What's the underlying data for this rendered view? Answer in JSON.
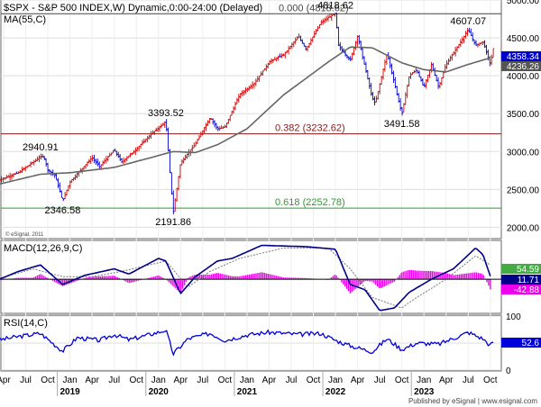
{
  "header": {
    "title": "$SPX - S&P 500 INDEX,W) Dynamic,0:00-24:00 (Delayed)",
    "ma_label": "MA(55,C)",
    "watermark": "© eSignal, 2011",
    "footer": "Published by eSignal | www.esignal.com"
  },
  "colors": {
    "up": "#cc0000",
    "down": "#0000cc",
    "ma": "#666666",
    "fib_red": "#8b1a1a",
    "fib_green": "#2e9b2e",
    "macd_line": "#00008b",
    "macd_signal": "#555555",
    "macd_hist": "#ee00ee",
    "rsi": "#0000dd",
    "last_price_bg": "#0000cc"
  },
  "chart_data": [
    {
      "type": "line",
      "name": "price",
      "ylim": [
        1850,
        5000
      ],
      "y_ticks": [
        2000,
        2500,
        3000,
        3500,
        4000,
        4500,
        5000
      ],
      "y_tick_labels": [
        "2000.00",
        "2500.00",
        "3000.00",
        "3500.00",
        "4000.00",
        "4500.00",
        "5000.00"
      ],
      "x_months": [
        "Apr",
        "Jul",
        "Oct",
        "Jan",
        "Apr",
        "Jul",
        "Oct",
        "Jan",
        "Apr",
        "Jul",
        "Oct",
        "Jan",
        "Apr",
        "Jul",
        "Oct",
        "Jan",
        "Apr",
        "Jul",
        "Oct",
        "Jan",
        "Apr",
        "Jul",
        "Oct"
      ],
      "x_years": [
        "2019",
        "2020",
        "2021",
        "2022",
        "2023"
      ],
      "x_start": "2018-04",
      "x_end": "2023-11",
      "key_points": [
        [
          "2018-03",
          2610
        ],
        [
          "2018-06",
          2720
        ],
        [
          "2018-09",
          2930
        ],
        [
          "2018-09",
          2940.91
        ],
        [
          "2018-10",
          2760
        ],
        [
          "2018-11",
          2680
        ],
        [
          "2018-12",
          2346.58
        ],
        [
          "2019-01",
          2600
        ],
        [
          "2019-04",
          2920
        ],
        [
          "2019-05",
          2800
        ],
        [
          "2019-07",
          3020
        ],
        [
          "2019-08",
          2860
        ],
        [
          "2019-10",
          3030
        ],
        [
          "2019-12",
          3230
        ],
        [
          "2020-02",
          3393.52
        ],
        [
          "2020-03",
          2191.86
        ],
        [
          "2020-04",
          2850
        ],
        [
          "2020-06",
          3100
        ],
        [
          "2020-08",
          3450
        ],
        [
          "2020-09",
          3300
        ],
        [
          "2020-10",
          3320
        ],
        [
          "2020-12",
          3750
        ],
        [
          "2021-02",
          3900
        ],
        [
          "2021-04",
          4180
        ],
        [
          "2021-06",
          4280
        ],
        [
          "2021-08",
          4520
        ],
        [
          "2021-09",
          4350
        ],
        [
          "2021-11",
          4700
        ],
        [
          "2021-12",
          4766
        ],
        [
          "2022-01",
          4818.62
        ],
        [
          "2022-01",
          4400
        ],
        [
          "2022-03",
          4200
        ],
        [
          "2022-04",
          4530
        ],
        [
          "2022-06",
          3700
        ],
        [
          "2022-06",
          3636
        ],
        [
          "2022-08",
          4300
        ],
        [
          "2022-10",
          3491.58
        ],
        [
          "2022-11",
          4000
        ],
        [
          "2022-12",
          4080
        ],
        [
          "2023-01",
          3840
        ],
        [
          "2023-02",
          4150
        ],
        [
          "2023-03",
          3850
        ],
        [
          "2023-04",
          4150
        ],
        [
          "2023-06",
          4450
        ],
        [
          "2023-07",
          4607.07
        ],
        [
          "2023-08",
          4400
        ],
        [
          "2023-09",
          4450
        ],
        [
          "2023-10",
          4150
        ],
        [
          "2023-10",
          4358.34
        ]
      ],
      "ma_points": [
        [
          "2018-03",
          2560
        ],
        [
          "2018-09",
          2700
        ],
        [
          "2019-01",
          2720
        ],
        [
          "2019-07",
          2790
        ],
        [
          "2019-12",
          2920
        ],
        [
          "2020-03",
          3000
        ],
        [
          "2020-06",
          2985
        ],
        [
          "2020-09",
          3090
        ],
        [
          "2021-01",
          3300
        ],
        [
          "2021-06",
          3750
        ],
        [
          "2021-12",
          4180
        ],
        [
          "2022-03",
          4380
        ],
        [
          "2022-06",
          4370
        ],
        [
          "2022-10",
          4170
        ],
        [
          "2023-01",
          4080
        ],
        [
          "2023-04",
          4050
        ],
        [
          "2023-07",
          4150
        ],
        [
          "2023-10",
          4236.26
        ]
      ],
      "annotations": [
        {
          "label": "2940.91",
          "date": "2018-09",
          "value": 2940.91,
          "anchor": "above"
        },
        {
          "label": "2346.58",
          "date": "2018-12",
          "value": 2346.58,
          "anchor": "below"
        },
        {
          "label": "3393.52",
          "date": "2020-02",
          "value": 3393.52,
          "anchor": "above"
        },
        {
          "label": "2191.86",
          "date": "2020-03",
          "value": 2191.86,
          "anchor": "below"
        },
        {
          "label": "4818.62",
          "date": "2022-01",
          "value": 4818.62,
          "anchor": "above"
        },
        {
          "label": "3491.58",
          "date": "2022-10",
          "value": 3491.58,
          "anchor": "below"
        },
        {
          "label": "4607.07",
          "date": "2023-07",
          "value": 4607.07,
          "anchor": "above"
        }
      ],
      "fib_levels": [
        {
          "label": "0.000 (4818.62)",
          "value": 4818.62,
          "color": "#444444"
        },
        {
          "label": "0.382 (3232.62)",
          "value": 3232.62,
          "color": "#8b1a1a"
        },
        {
          "label": "0.618 (2252.78)",
          "value": 2252.78,
          "color": "#2e9b2e"
        }
      ],
      "last_price": {
        "value": 4358.34,
        "label": "4358.34"
      },
      "last_ma": {
        "value": 4236.26,
        "label": "4236.26"
      }
    },
    {
      "type": "line",
      "name": "macd",
      "title": "MACD(12,26,9,C)",
      "ylim": [
        -70,
        80
      ],
      "zero_line": true,
      "macd_points": [
        [
          "2018-03",
          -5
        ],
        [
          "2018-06",
          30
        ],
        [
          "2018-09",
          55
        ],
        [
          "2018-12",
          -20
        ],
        [
          "2019-03",
          15
        ],
        [
          "2019-07",
          40
        ],
        [
          "2019-09",
          20
        ],
        [
          "2020-01",
          80
        ],
        [
          "2020-02",
          70
        ],
        [
          "2020-04",
          -55
        ],
        [
          "2020-06",
          10
        ],
        [
          "2020-09",
          70
        ],
        [
          "2020-11",
          80
        ],
        [
          "2021-03",
          130
        ],
        [
          "2021-09",
          125
        ],
        [
          "2022-01",
          115
        ],
        [
          "2022-03",
          -20
        ],
        [
          "2022-05",
          -40
        ],
        [
          "2022-07",
          -120
        ],
        [
          "2022-09",
          -110
        ],
        [
          "2022-11",
          -50
        ],
        [
          "2023-02",
          0
        ],
        [
          "2023-05",
          40
        ],
        [
          "2023-08",
          120
        ],
        [
          "2023-09",
          95
        ],
        [
          "2023-10",
          11.71
        ]
      ],
      "signal_points": [
        [
          "2018-03",
          0
        ],
        [
          "2018-08",
          40
        ],
        [
          "2018-12",
          10
        ],
        [
          "2019-04",
          10
        ],
        [
          "2019-08",
          30
        ],
        [
          "2020-02",
          70
        ],
        [
          "2020-05",
          -30
        ],
        [
          "2020-08",
          30
        ],
        [
          "2020-12",
          80
        ],
        [
          "2021-06",
          120
        ],
        [
          "2021-12",
          120
        ],
        [
          "2022-03",
          40
        ],
        [
          "2022-06",
          -70
        ],
        [
          "2022-10",
          -110
        ],
        [
          "2022-12",
          -70
        ],
        [
          "2023-04",
          0
        ],
        [
          "2023-08",
          90
        ],
        [
          "2023-10",
          54.59
        ]
      ],
      "labels": {
        "signal": "54.59",
        "macd": "11.71",
        "histogram": "-42.88"
      }
    },
    {
      "type": "line",
      "name": "rsi",
      "title": "RSI(14,C)",
      "ylim": [
        0,
        100
      ],
      "y_ticks": [
        0,
        50,
        100
      ],
      "y_tick_labels": [
        "0",
        "50",
        "100"
      ],
      "last_value": "52.6",
      "points": [
        [
          "2018-03",
          55
        ],
        [
          "2018-06",
          62
        ],
        [
          "2018-09",
          68
        ],
        [
          "2018-12",
          35
        ],
        [
          "2019-02",
          60
        ],
        [
          "2019-05",
          55
        ],
        [
          "2019-07",
          66
        ],
        [
          "2019-09",
          56
        ],
        [
          "2020-01",
          70
        ],
        [
          "2020-02",
          74
        ],
        [
          "2020-03",
          30
        ],
        [
          "2020-05",
          58
        ],
        [
          "2020-08",
          68
        ],
        [
          "2020-10",
          55
        ],
        [
          "2021-01",
          65
        ],
        [
          "2021-04",
          70
        ],
        [
          "2021-08",
          66
        ],
        [
          "2021-11",
          68
        ],
        [
          "2022-01",
          55
        ],
        [
          "2022-03",
          45
        ],
        [
          "2022-06",
          34
        ],
        [
          "2022-08",
          58
        ],
        [
          "2022-10",
          38
        ],
        [
          "2022-12",
          50
        ],
        [
          "2023-03",
          48
        ],
        [
          "2023-06",
          64
        ],
        [
          "2023-07",
          70
        ],
        [
          "2023-09",
          58
        ],
        [
          "2023-10",
          45
        ],
        [
          "2023-10",
          52.6
        ]
      ]
    }
  ]
}
